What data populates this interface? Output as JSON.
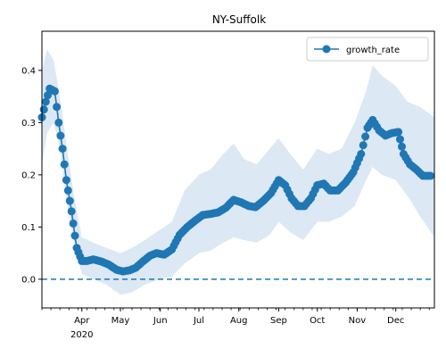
{
  "chart_data": {
    "type": "line",
    "title": "NY-Suffolk",
    "xlabel": "",
    "ylabel": "",
    "ylim": [
      -0.055,
      0.475
    ],
    "x_range": [
      "2020-03-01",
      "2020-12-31"
    ],
    "y_ticks": [
      "0.0",
      "0.1",
      "0.2",
      "0.3",
      "0.4"
    ],
    "x_ticks": [
      {
        "date": "2020-04-01",
        "label": "Apr"
      },
      {
        "date": "2020-05-01",
        "label": "May"
      },
      {
        "date": "2020-06-01",
        "label": "Jun"
      },
      {
        "date": "2020-07-01",
        "label": "Jul"
      },
      {
        "date": "2020-08-01",
        "label": "Aug"
      },
      {
        "date": "2020-09-01",
        "label": "Sep"
      },
      {
        "date": "2020-10-01",
        "label": "Oct"
      },
      {
        "date": "2020-11-01",
        "label": "Nov"
      },
      {
        "date": "2020-12-01",
        "label": "Dec"
      }
    ],
    "year_label": "2020",
    "reference_line": {
      "y": 0.0,
      "style": "dashed"
    },
    "legend": {
      "placement": "top-right",
      "entries": [
        "growth_rate"
      ]
    },
    "grid": false,
    "colors": {
      "series": "#1f77b4",
      "band": "#dce8f4"
    },
    "series": [
      {
        "name": "growth_rate",
        "points": [
          [
            "2020-03-01",
            0.31
          ],
          [
            "2020-03-04",
            0.34
          ],
          [
            "2020-03-07",
            0.365
          ],
          [
            "2020-03-11",
            0.36
          ],
          [
            "2020-03-14",
            0.3
          ],
          [
            "2020-03-17",
            0.25
          ],
          [
            "2020-03-20",
            0.19
          ],
          [
            "2020-03-24",
            0.13
          ],
          [
            "2020-03-28",
            0.06
          ],
          [
            "2020-04-01",
            0.035
          ],
          [
            "2020-04-05",
            0.035
          ],
          [
            "2020-04-10",
            0.038
          ],
          [
            "2020-04-16",
            0.034
          ],
          [
            "2020-04-22",
            0.028
          ],
          [
            "2020-04-28",
            0.018
          ],
          [
            "2020-05-03",
            0.015
          ],
          [
            "2020-05-08",
            0.017
          ],
          [
            "2020-05-13",
            0.022
          ],
          [
            "2020-05-18",
            0.033
          ],
          [
            "2020-05-24",
            0.045
          ],
          [
            "2020-05-29",
            0.05
          ],
          [
            "2020-06-04",
            0.047
          ],
          [
            "2020-06-10",
            0.057
          ],
          [
            "2020-06-16",
            0.085
          ],
          [
            "2020-06-22",
            0.1
          ],
          [
            "2020-06-28",
            0.112
          ],
          [
            "2020-07-04",
            0.123
          ],
          [
            "2020-07-10",
            0.125
          ],
          [
            "2020-07-16",
            0.128
          ],
          [
            "2020-07-22",
            0.137
          ],
          [
            "2020-07-28",
            0.152
          ],
          [
            "2020-08-03",
            0.147
          ],
          [
            "2020-08-09",
            0.14
          ],
          [
            "2020-08-14",
            0.138
          ],
          [
            "2020-08-20",
            0.15
          ],
          [
            "2020-08-26",
            0.165
          ],
          [
            "2020-09-01",
            0.19
          ],
          [
            "2020-09-06",
            0.18
          ],
          [
            "2020-09-11",
            0.155
          ],
          [
            "2020-09-16",
            0.14
          ],
          [
            "2020-09-21",
            0.14
          ],
          [
            "2020-09-26",
            0.155
          ],
          [
            "2020-10-01",
            0.18
          ],
          [
            "2020-10-06",
            0.183
          ],
          [
            "2020-10-11",
            0.17
          ],
          [
            "2020-10-17",
            0.17
          ],
          [
            "2020-10-23",
            0.185
          ],
          [
            "2020-10-29",
            0.205
          ],
          [
            "2020-11-04",
            0.24
          ],
          [
            "2020-11-09",
            0.29
          ],
          [
            "2020-11-13",
            0.305
          ],
          [
            "2020-11-18",
            0.285
          ],
          [
            "2020-11-23",
            0.275
          ],
          [
            "2020-11-28",
            0.28
          ],
          [
            "2020-12-03",
            0.282
          ],
          [
            "2020-12-07",
            0.24
          ],
          [
            "2020-12-12",
            0.22
          ],
          [
            "2020-12-17",
            0.21
          ],
          [
            "2020-12-22",
            0.198
          ],
          [
            "2020-12-28",
            0.198
          ]
        ],
        "band_upper": [
          [
            "2020-03-01",
            0.4
          ],
          [
            "2020-03-05",
            0.44
          ],
          [
            "2020-03-10",
            0.42
          ],
          [
            "2020-03-15",
            0.35
          ],
          [
            "2020-03-20",
            0.26
          ],
          [
            "2020-03-26",
            0.16
          ],
          [
            "2020-04-01",
            0.08
          ],
          [
            "2020-04-10",
            0.07
          ],
          [
            "2020-04-20",
            0.06
          ],
          [
            "2020-05-01",
            0.05
          ],
          [
            "2020-05-10",
            0.06
          ],
          [
            "2020-05-20",
            0.075
          ],
          [
            "2020-06-01",
            0.095
          ],
          [
            "2020-06-10",
            0.11
          ],
          [
            "2020-06-20",
            0.17
          ],
          [
            "2020-07-01",
            0.2
          ],
          [
            "2020-07-10",
            0.21
          ],
          [
            "2020-07-20",
            0.24
          ],
          [
            "2020-07-28",
            0.26
          ],
          [
            "2020-08-05",
            0.23
          ],
          [
            "2020-08-15",
            0.22
          ],
          [
            "2020-08-25",
            0.25
          ],
          [
            "2020-09-01",
            0.27
          ],
          [
            "2020-09-10",
            0.24
          ],
          [
            "2020-09-20",
            0.21
          ],
          [
            "2020-10-01",
            0.25
          ],
          [
            "2020-10-10",
            0.24
          ],
          [
            "2020-10-20",
            0.25
          ],
          [
            "2020-10-30",
            0.3
          ],
          [
            "2020-11-08",
            0.36
          ],
          [
            "2020-11-13",
            0.41
          ],
          [
            "2020-11-20",
            0.39
          ],
          [
            "2020-12-01",
            0.37
          ],
          [
            "2020-12-10",
            0.34
          ],
          [
            "2020-12-20",
            0.33
          ],
          [
            "2020-12-31",
            0.31
          ]
        ],
        "band_lower": [
          [
            "2020-03-01",
            0.22
          ],
          [
            "2020-03-05",
            0.28
          ],
          [
            "2020-03-10",
            0.3
          ],
          [
            "2020-03-15",
            0.25
          ],
          [
            "2020-03-20",
            0.15
          ],
          [
            "2020-03-26",
            0.07
          ],
          [
            "2020-04-01",
            0.01
          ],
          [
            "2020-04-10",
            0.0
          ],
          [
            "2020-04-20",
            -0.01
          ],
          [
            "2020-05-01",
            -0.03
          ],
          [
            "2020-05-10",
            -0.025
          ],
          [
            "2020-05-20",
            -0.01
          ],
          [
            "2020-06-01",
            0.0
          ],
          [
            "2020-06-10",
            0.005
          ],
          [
            "2020-06-20",
            0.03
          ],
          [
            "2020-07-01",
            0.05
          ],
          [
            "2020-07-10",
            0.055
          ],
          [
            "2020-07-20",
            0.07
          ],
          [
            "2020-07-28",
            0.08
          ],
          [
            "2020-08-05",
            0.075
          ],
          [
            "2020-08-15",
            0.07
          ],
          [
            "2020-08-25",
            0.085
          ],
          [
            "2020-09-01",
            0.11
          ],
          [
            "2020-09-10",
            0.09
          ],
          [
            "2020-09-20",
            0.075
          ],
          [
            "2020-10-01",
            0.11
          ],
          [
            "2020-10-10",
            0.11
          ],
          [
            "2020-10-20",
            0.12
          ],
          [
            "2020-10-30",
            0.14
          ],
          [
            "2020-11-08",
            0.19
          ],
          [
            "2020-11-13",
            0.215
          ],
          [
            "2020-11-20",
            0.2
          ],
          [
            "2020-12-01",
            0.19
          ],
          [
            "2020-12-10",
            0.16
          ],
          [
            "2020-12-20",
            0.12
          ],
          [
            "2020-12-31",
            0.08
          ]
        ]
      }
    ]
  }
}
